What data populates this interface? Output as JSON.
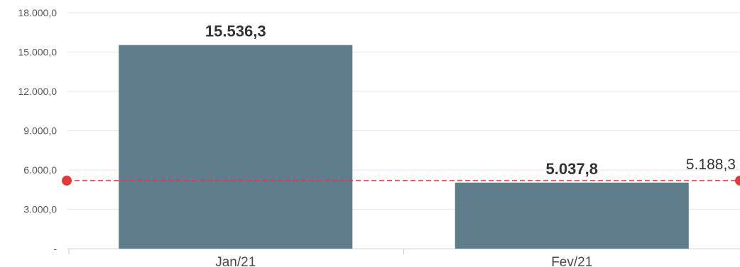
{
  "chart_data": {
    "type": "bar",
    "categories": [
      "Jan/21",
      "Fev/21"
    ],
    "values": [
      15536.3,
      5037.8
    ],
    "data_labels": [
      "15.536,3",
      "5.037,8"
    ],
    "ylim": [
      0,
      18000
    ],
    "y_ticks": [
      0,
      3000,
      6000,
      9000,
      12000,
      15000,
      18000
    ],
    "y_tick_labels": [
      "-",
      "3.000,0",
      "6.000,0",
      "9.000,0",
      "12.000,0",
      "15.000,0",
      "18.000,0"
    ],
    "reference_line": {
      "value": 5188.3,
      "label": "5.188,3",
      "style": "dashed",
      "color": "#e03a3a"
    },
    "grid": true,
    "colors": {
      "bar": "#607d8b",
      "grid": "#e6e6e6",
      "reference": "#e03a3a"
    }
  }
}
